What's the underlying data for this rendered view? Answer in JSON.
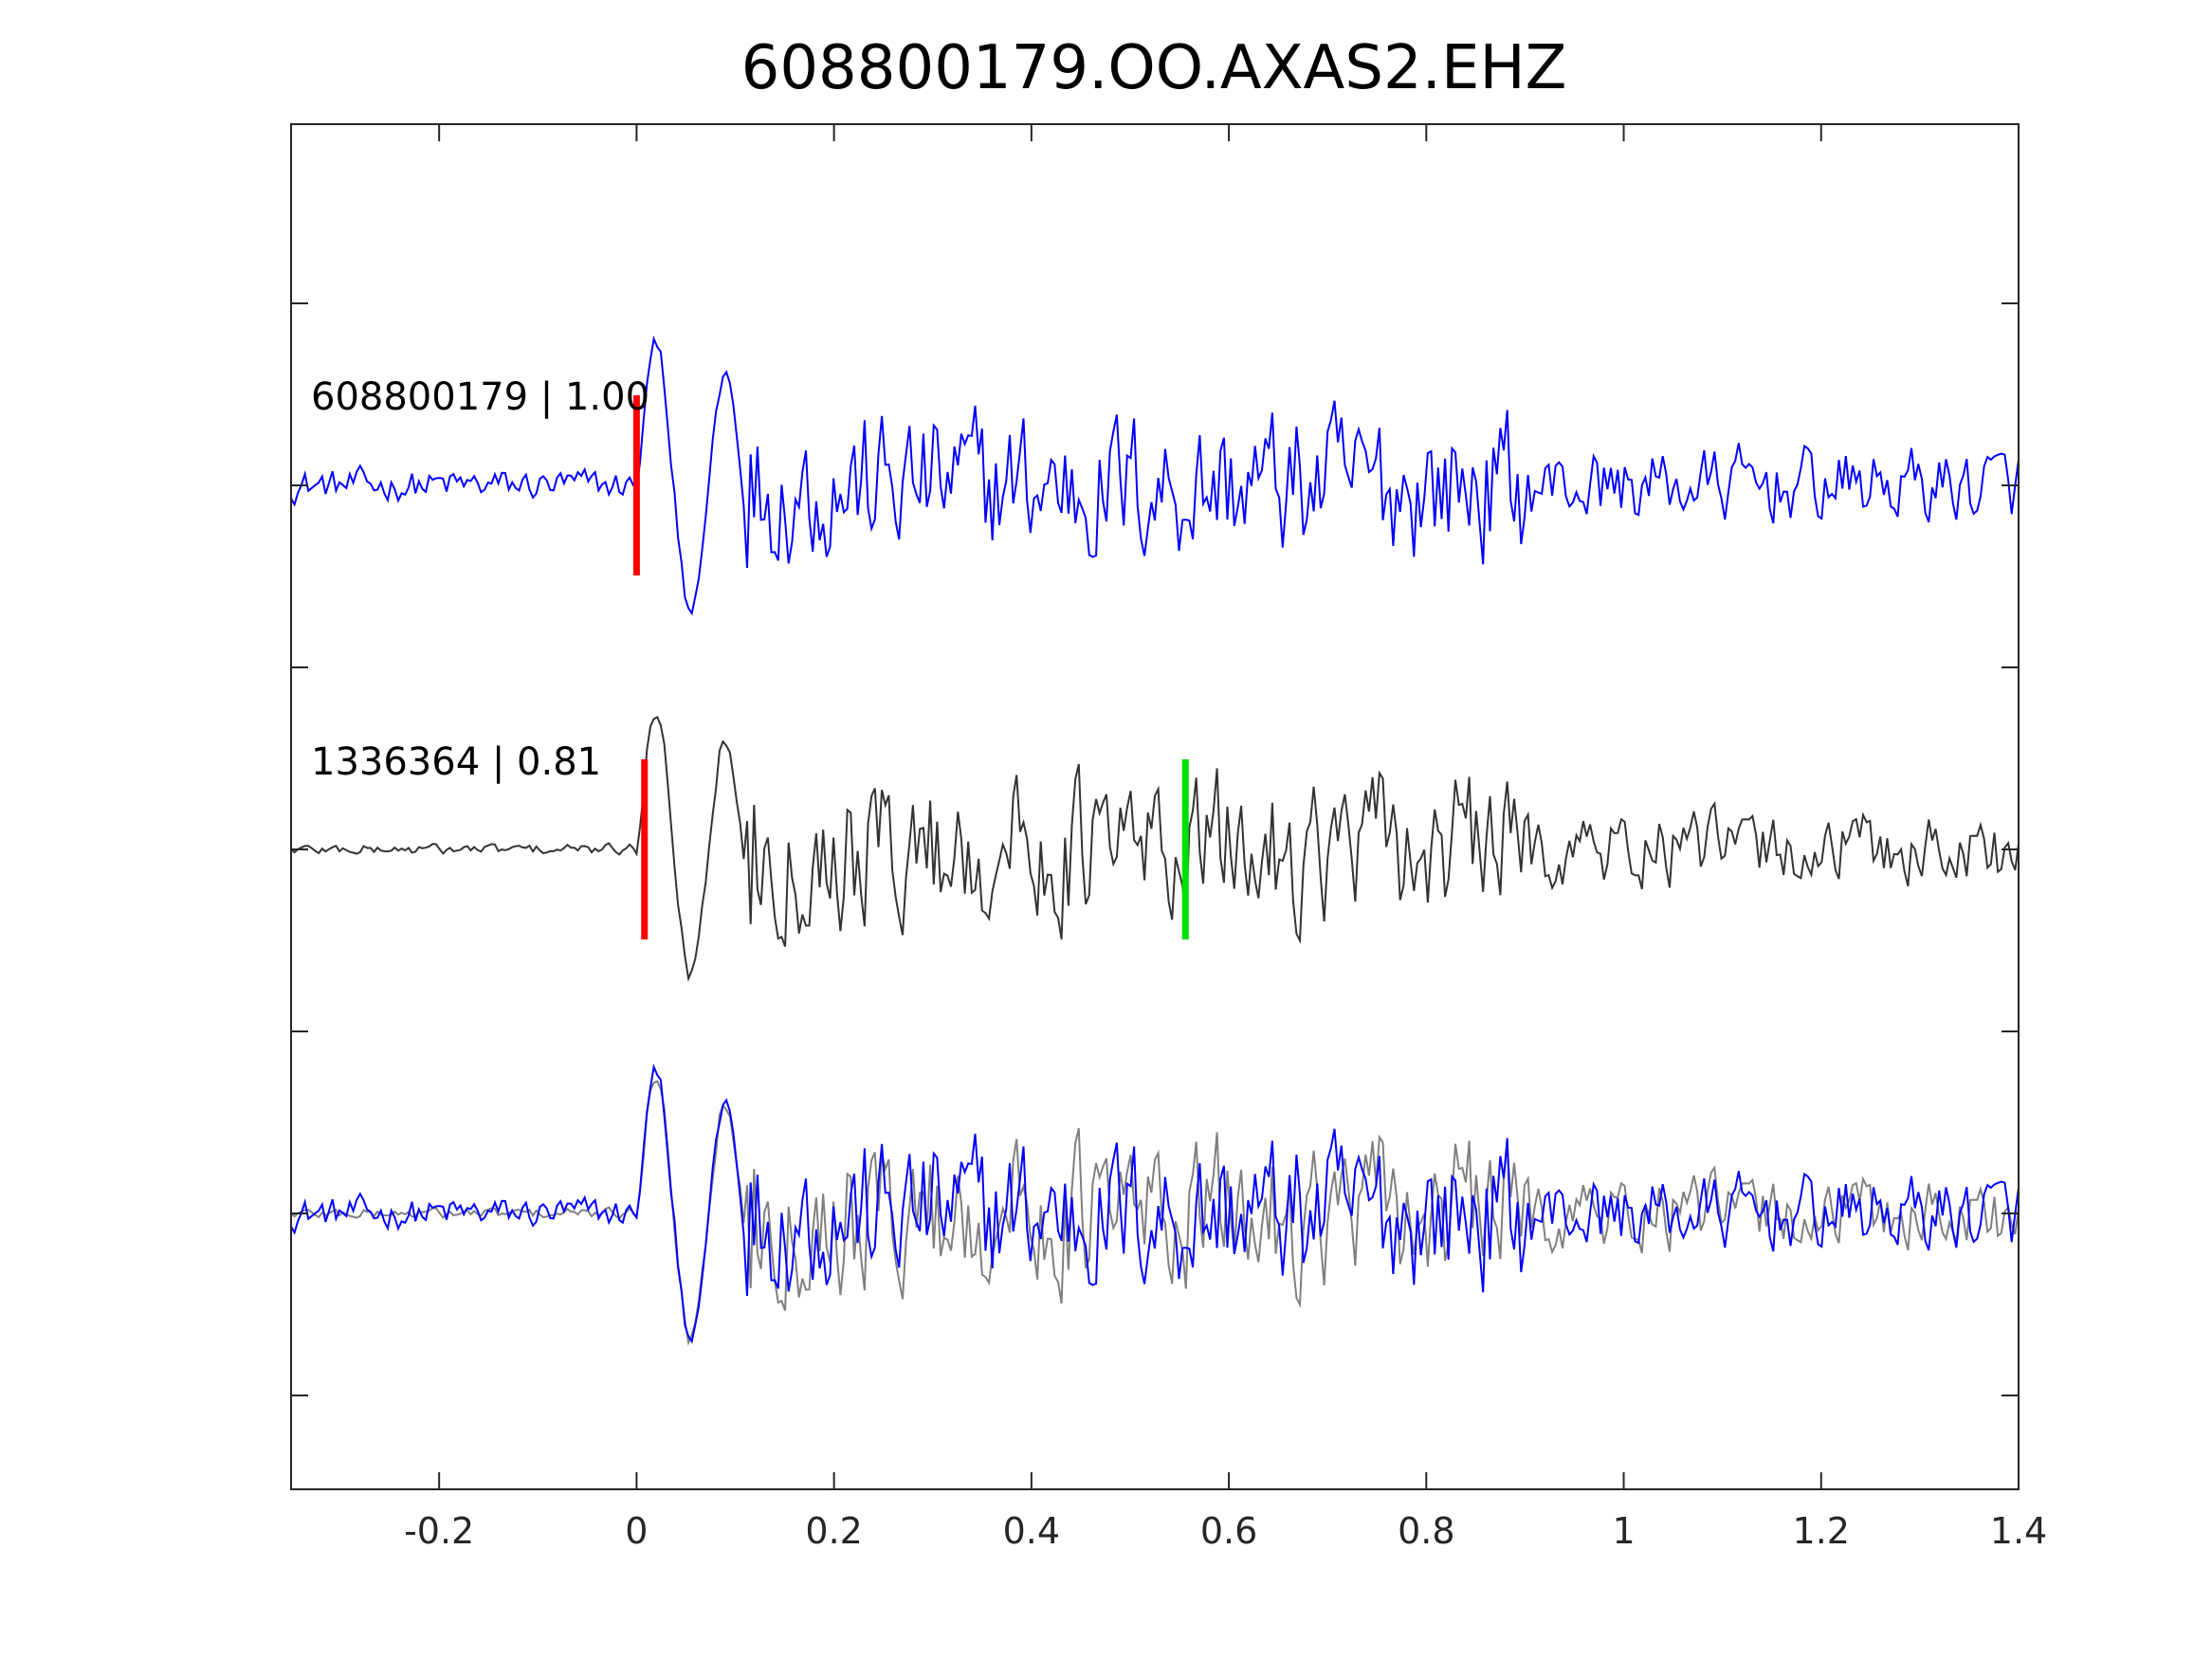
{
  "chart_data": {
    "type": "line",
    "title": "608800179.OO.AXAS2.EHZ",
    "xlabel": "",
    "ylabel": "",
    "xlim": [
      -0.35,
      1.4
    ],
    "xticks": [
      "-0.2",
      "0",
      "0.2",
      "0.4",
      "0.6",
      "0.8",
      "1",
      "1.2",
      "1.4"
    ],
    "xtick_values": [
      -0.2,
      0,
      0.2,
      0.4,
      0.6,
      0.8,
      1,
      1.2,
      1.4
    ],
    "yticks_labeled": false,
    "ytick_count": 7,
    "grid": false,
    "legend": "none",
    "colors": {
      "primary_trace": "#0000ff",
      "template_trace": "#333333",
      "overlay_template": "#808080",
      "p_pick": "#ff0000",
      "s_pick": "#00dd00",
      "axes": "#262626"
    },
    "panels": [
      {
        "id": "top",
        "label": "608800179 | 1.00",
        "event_id": "608800179",
        "correlation": "1.00",
        "trace": "blue",
        "picks": [
          {
            "phase": "P",
            "time": 0.0,
            "color": "red"
          }
        ]
      },
      {
        "id": "middle",
        "label": "1336364 | 0.81",
        "event_id": "1336364",
        "correlation": "0.81",
        "trace": "dark-gray",
        "picks": [
          {
            "phase": "P",
            "time": 0.008,
            "color": "red"
          },
          {
            "phase": "S",
            "time": 0.556,
            "color": "green"
          }
        ]
      },
      {
        "id": "bottom",
        "label": "",
        "trace": "overlay of blue and gray",
        "picks": []
      }
    ],
    "waveform_envelope": [
      {
        "t_start": -0.35,
        "t_end": 0.0,
        "relative_amplitude": 0.15
      },
      {
        "t_start": 0.0,
        "t_end": 0.12,
        "relative_amplitude": 1.0
      },
      {
        "t_start": 0.12,
        "t_end": 0.9,
        "relative_amplitude": 0.7
      },
      {
        "t_start": 0.9,
        "t_end": 1.4,
        "relative_amplitude": 0.35
      }
    ]
  }
}
